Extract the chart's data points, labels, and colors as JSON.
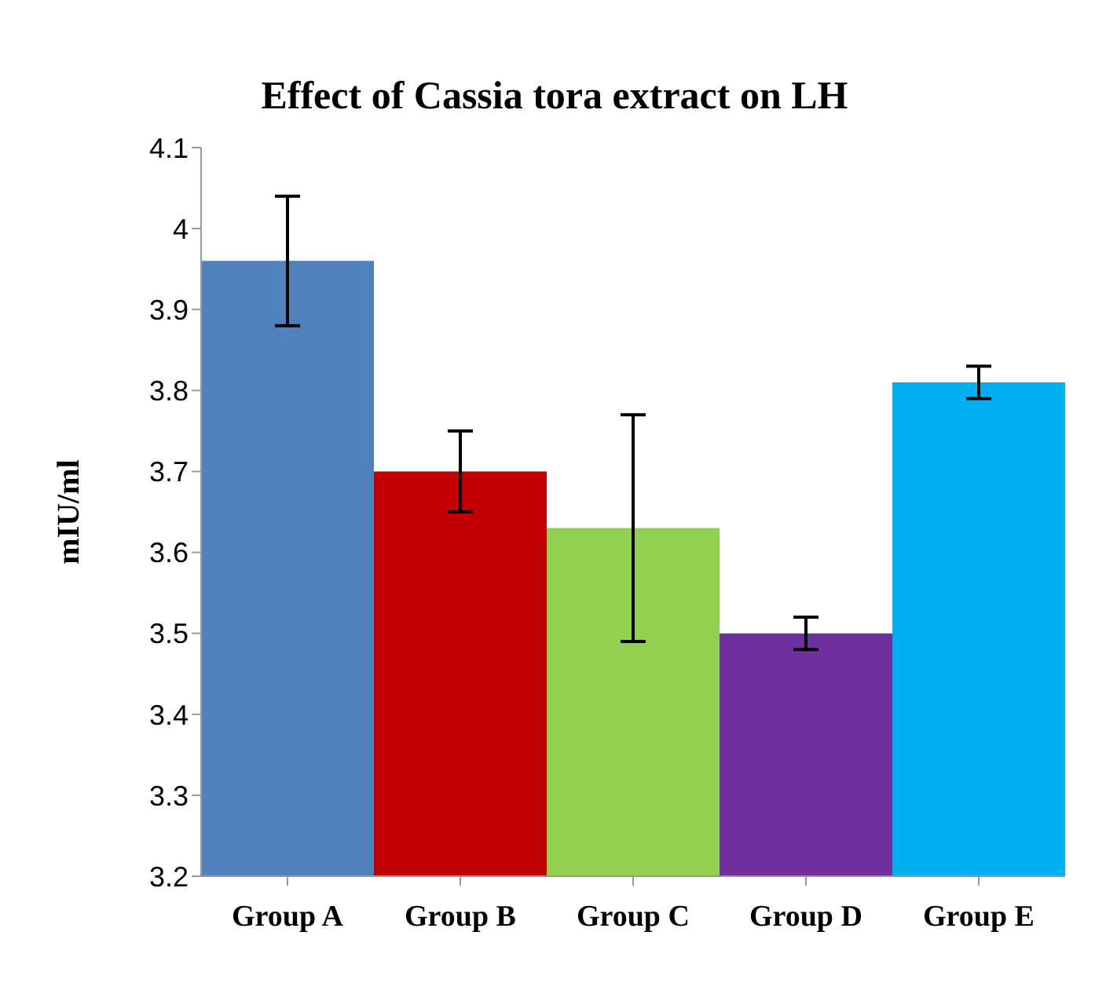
{
  "chart_data": {
    "type": "bar",
    "title": "Effect of Cassia tora extract on LH",
    "ylabel": "mIU/ml",
    "categories": [
      "Group A",
      "Group B",
      "Group C",
      "Group D",
      "Group E"
    ],
    "values": [
      3.96,
      3.7,
      3.63,
      3.5,
      3.81
    ],
    "errors": [
      0.08,
      0.05,
      0.14,
      0.02,
      0.02
    ],
    "colors": [
      "#4f81bd",
      "#c00000",
      "#92d050",
      "#7030a0",
      "#00b0f0"
    ],
    "ylim": [
      3.2,
      4.1
    ],
    "yticks": [
      3.2,
      3.3,
      3.4,
      3.5,
      3.6,
      3.7,
      3.8,
      3.9,
      4,
      4.1
    ],
    "grid": false,
    "legend": false
  }
}
